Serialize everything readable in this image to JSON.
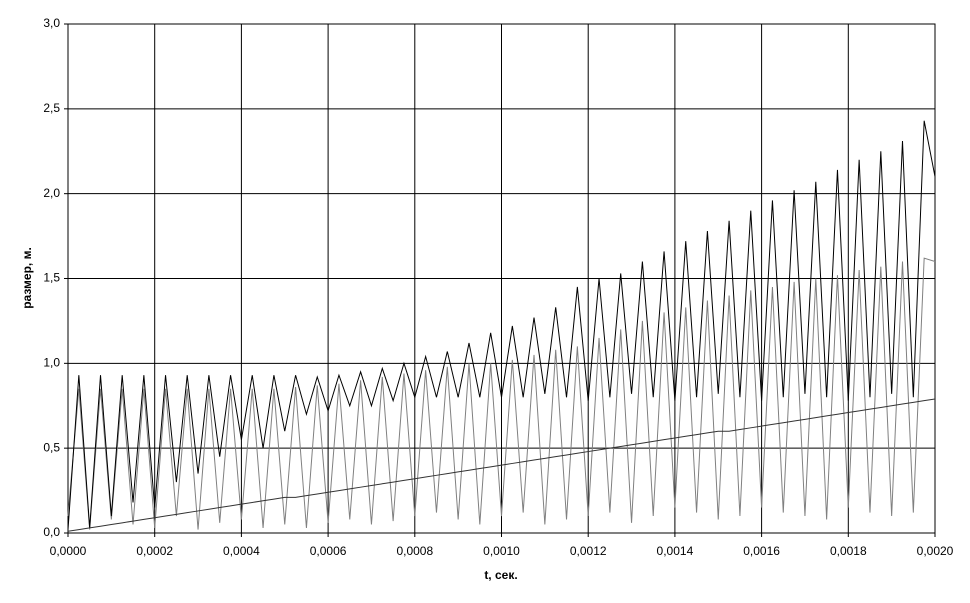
{
  "chart_data": {
    "type": "line",
    "x_label": "t, сек.",
    "y_label": "размер, м.",
    "xlim": [
      0,
      0.002
    ],
    "ylim": [
      0,
      3
    ],
    "xticks": [
      {
        "value": 0,
        "label": "0,0000"
      },
      {
        "value": 0.0002,
        "label": "0,0002"
      },
      {
        "value": 0.0004,
        "label": "0,0004"
      },
      {
        "value": 0.0006,
        "label": "0,0006"
      },
      {
        "value": 0.0008,
        "label": "0,0008"
      },
      {
        "value": 0.001,
        "label": "0,0010"
      },
      {
        "value": 0.0012,
        "label": "0,0012"
      },
      {
        "value": 0.0014,
        "label": "0,0014"
      },
      {
        "value": 0.0016,
        "label": "0,0016"
      },
      {
        "value": 0.0018,
        "label": "0,0018"
      },
      {
        "value": 0.002,
        "label": "0,0020"
      }
    ],
    "yticks": [
      {
        "value": 0,
        "label": "0,0"
      },
      {
        "value": 0.5,
        "label": "0,5"
      },
      {
        "value": 1,
        "label": "1,0"
      },
      {
        "value": 1.5,
        "label": "1,5"
      },
      {
        "value": 2,
        "label": "2,0"
      },
      {
        "value": 2.5,
        "label": "2,5"
      },
      {
        "value": 3,
        "label": "3,0"
      }
    ],
    "grid": true,
    "x": [
      0,
      2.5e-05,
      5e-05,
      7.5e-05,
      0.0001,
      0.000125,
      0.00015,
      0.000175,
      0.0002,
      0.000225,
      0.00025,
      0.000275,
      0.0003,
      0.000325,
      0.00035,
      0.000375,
      0.0004,
      0.000425,
      0.00045,
      0.000475,
      0.0005,
      0.000525,
      0.00055,
      0.000575,
      0.0006,
      0.000625,
      0.00065,
      0.000675,
      0.0007,
      0.000725,
      0.00075,
      0.000775,
      0.0008,
      0.000825,
      0.00085,
      0.000875,
      0.0009,
      0.000925,
      0.00095,
      0.000975,
      0.001,
      0.001025,
      0.00105,
      0.001075,
      0.0011,
      0.001125,
      0.00115,
      0.001175,
      0.0012,
      0.001225,
      0.00125,
      0.001275,
      0.0013,
      0.001325,
      0.00135,
      0.001375,
      0.0014,
      0.001425,
      0.00145,
      0.001475,
      0.0015,
      0.001525,
      0.00155,
      0.001575,
      0.0016,
      0.001625,
      0.00165,
      0.001675,
      0.0017,
      0.001725,
      0.00175,
      0.001775,
      0.0018,
      0.001825,
      0.00185,
      0.001875,
      0.0019,
      0.001925,
      0.00195,
      0.001975,
      0.002
    ],
    "series": [
      {
        "color": "#808080",
        "values": [
          0.1,
          0.85,
          0.02,
          0.85,
          0.08,
          0.85,
          0.05,
          0.85,
          0.03,
          0.85,
          0.1,
          0.85,
          0.02,
          0.85,
          0.06,
          0.85,
          0.08,
          0.85,
          0.03,
          0.85,
          0.05,
          0.86,
          0.03,
          0.87,
          0.06,
          0.88,
          0.08,
          0.9,
          0.05,
          0.92,
          0.07,
          0.94,
          0.1,
          0.96,
          0.12,
          0.98,
          0.08,
          1.0,
          0.05,
          1.0,
          0.1,
          1.02,
          0.12,
          1.05,
          0.05,
          1.08,
          0.08,
          1.1,
          0.1,
          1.15,
          0.12,
          1.2,
          0.06,
          1.25,
          0.1,
          1.3,
          0.15,
          1.33,
          0.12,
          1.37,
          0.08,
          1.4,
          0.1,
          1.43,
          0.15,
          1.45,
          0.12,
          1.48,
          0.1,
          1.5,
          0.08,
          1.52,
          0.15,
          1.55,
          0.12,
          1.57,
          0.1,
          1.6,
          0.12,
          1.62,
          1.6
        ]
      },
      {
        "color": "#000000",
        "values": [
          0.02,
          0.93,
          0.03,
          0.93,
          0.1,
          0.93,
          0.18,
          0.93,
          0.15,
          0.93,
          0.3,
          0.93,
          0.35,
          0.93,
          0.45,
          0.93,
          0.55,
          0.93,
          0.5,
          0.93,
          0.6,
          0.93,
          0.7,
          0.92,
          0.72,
          0.93,
          0.75,
          0.95,
          0.75,
          0.97,
          0.78,
          1.0,
          0.8,
          1.04,
          0.8,
          1.07,
          0.8,
          1.12,
          0.8,
          1.18,
          0.8,
          1.22,
          0.8,
          1.27,
          0.82,
          1.33,
          0.8,
          1.45,
          0.78,
          1.5,
          0.8,
          1.53,
          0.82,
          1.6,
          0.8,
          1.66,
          0.78,
          1.72,
          0.8,
          1.78,
          0.82,
          1.84,
          0.8,
          1.9,
          0.78,
          1.96,
          0.8,
          2.02,
          0.82,
          2.07,
          0.8,
          2.14,
          0.78,
          2.2,
          0.8,
          2.25,
          0.82,
          2.31,
          0.8,
          2.43,
          2.1
        ]
      },
      {
        "color": "#333333",
        "values": [
          0.01,
          0.02,
          0.03,
          0.04,
          0.05,
          0.06,
          0.07,
          0.08,
          0.09,
          0.1,
          0.11,
          0.12,
          0.13,
          0.14,
          0.15,
          0.16,
          0.17,
          0.18,
          0.19,
          0.2,
          0.21,
          0.21,
          0.22,
          0.23,
          0.24,
          0.25,
          0.26,
          0.27,
          0.28,
          0.29,
          0.3,
          0.31,
          0.32,
          0.33,
          0.34,
          0.35,
          0.36,
          0.37,
          0.38,
          0.39,
          0.4,
          0.41,
          0.42,
          0.43,
          0.44,
          0.45,
          0.46,
          0.47,
          0.48,
          0.49,
          0.5,
          0.51,
          0.52,
          0.53,
          0.54,
          0.55,
          0.56,
          0.57,
          0.58,
          0.59,
          0.6,
          0.6,
          0.61,
          0.62,
          0.63,
          0.64,
          0.65,
          0.66,
          0.67,
          0.68,
          0.69,
          0.7,
          0.71,
          0.72,
          0.73,
          0.74,
          0.75,
          0.76,
          0.77,
          0.78,
          0.79
        ]
      }
    ]
  }
}
